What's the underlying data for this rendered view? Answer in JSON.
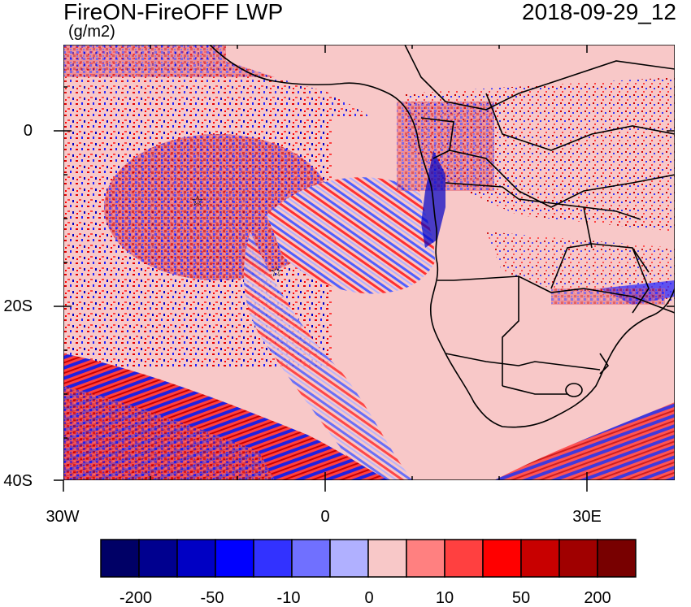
{
  "title": "FireON-FireOFF LWP",
  "timestamp": "2018-09-29_12",
  "units": "(g/m2)",
  "map": {
    "projection": "lat-lon",
    "lon_range": [
      -30,
      40
    ],
    "lat_range": [
      -40,
      10
    ],
    "lat_tick_labels": [
      "0",
      "20S",
      "40S"
    ],
    "lon_tick_labels": [
      "30W",
      "0",
      "30E"
    ],
    "land_color": "#f8c8c8",
    "border_color": "#000000",
    "markers": [
      {
        "name": "star-marker",
        "symbol": "☆"
      },
      {
        "name": "star-marker",
        "symbol": "☆"
      }
    ]
  },
  "colorbar": {
    "colors": [
      "#000066",
      "#00008f",
      "#0000c4",
      "#0000ff",
      "#3232ff",
      "#7070ff",
      "#b0b0ff",
      "#f8c8c8",
      "#ff8080",
      "#ff4040",
      "#ff0000",
      "#c80000",
      "#a00000",
      "#780000"
    ],
    "labels": [
      "-200",
      "-50",
      "-10",
      "0",
      "10",
      "50",
      "200"
    ]
  }
}
